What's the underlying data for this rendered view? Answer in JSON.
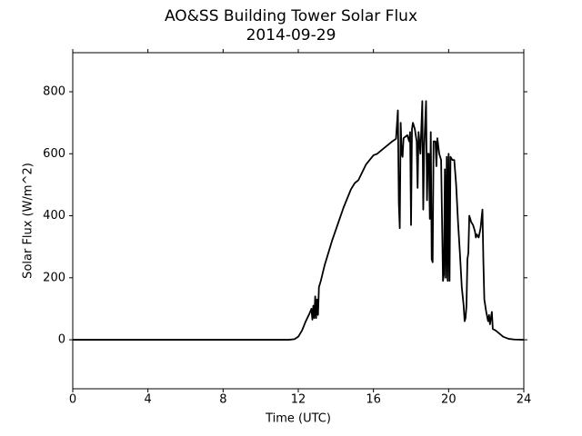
{
  "chart_data": {
    "type": "line",
    "title": "AO&SS Building Tower Solar Flux",
    "subtitle": "2014-09-29",
    "x_label": "Time (UTC)",
    "y_label": "Solar Flux (W/m^2)",
    "xlim": [
      0,
      24
    ],
    "ylim": [
      -158,
      926
    ],
    "xticks": [
      0,
      4,
      8,
      12,
      16,
      20,
      24
    ],
    "yticks": [
      0,
      200,
      400,
      600,
      800
    ],
    "grid": false,
    "series": [
      {
        "color": "#000000",
        "x": [
          0,
          11.5,
          11.8,
          12.0,
          12.2,
          12.4,
          12.6,
          12.7,
          12.75,
          12.8,
          12.85,
          12.9,
          12.95,
          13.0,
          13.05,
          13.1,
          13.2,
          13.4,
          13.6,
          13.8,
          14.0,
          14.2,
          14.4,
          14.6,
          14.8,
          15.0,
          15.2,
          15.4,
          15.6,
          15.8,
          16.0,
          16.2,
          16.4,
          16.6,
          16.8,
          17.0,
          17.2,
          17.3,
          17.35,
          17.4,
          17.45,
          17.5,
          17.55,
          17.6,
          17.8,
          17.9,
          17.95,
          18.0,
          18.05,
          18.1,
          18.2,
          18.3,
          18.35,
          18.4,
          18.5,
          18.6,
          18.65,
          18.7,
          18.8,
          18.85,
          18.9,
          18.95,
          19.0,
          19.05,
          19.1,
          19.15,
          19.2,
          19.3,
          19.35,
          19.4,
          19.5,
          19.6,
          19.7,
          19.75,
          19.8,
          19.85,
          19.9,
          19.95,
          20.0,
          20.05,
          20.1,
          20.2,
          20.3,
          20.4,
          20.5,
          20.6,
          20.7,
          20.8,
          20.85,
          20.9,
          20.95,
          21.0,
          21.05,
          21.1,
          21.2,
          21.3,
          21.4,
          21.45,
          21.5,
          21.6,
          21.7,
          21.8,
          21.85,
          21.9,
          22.0,
          22.1,
          22.15,
          22.2,
          22.3,
          22.35,
          22.5,
          22.7,
          22.9,
          23.2,
          23.5,
          24
        ],
        "values": [
          0,
          0,
          2,
          10,
          30,
          60,
          85,
          100,
          65,
          110,
          70,
          140,
          70,
          130,
          80,
          170,
          190,
          240,
          280,
          320,
          355,
          390,
          425,
          455,
          485,
          505,
          515,
          540,
          565,
          580,
          595,
          600,
          610,
          620,
          630,
          640,
          648,
          740,
          440,
          360,
          700,
          600,
          590,
          650,
          660,
          640,
          670,
          370,
          680,
          700,
          680,
          640,
          490,
          670,
          600,
          770,
          420,
          620,
          770,
          450,
          600,
          600,
          390,
          670,
          260,
          250,
          640,
          640,
          560,
          650,
          600,
          580,
          190,
          210,
          550,
          200,
          590,
          190,
          600,
          190,
          590,
          580,
          580,
          500,
          380,
          280,
          170,
          110,
          60,
          70,
          110,
          260,
          280,
          400,
          380,
          370,
          350,
          330,
          340,
          330,
          360,
          420,
          250,
          130,
          90,
          60,
          80,
          50,
          90,
          35,
          30,
          20,
          10,
          3,
          1,
          0
        ]
      }
    ]
  }
}
